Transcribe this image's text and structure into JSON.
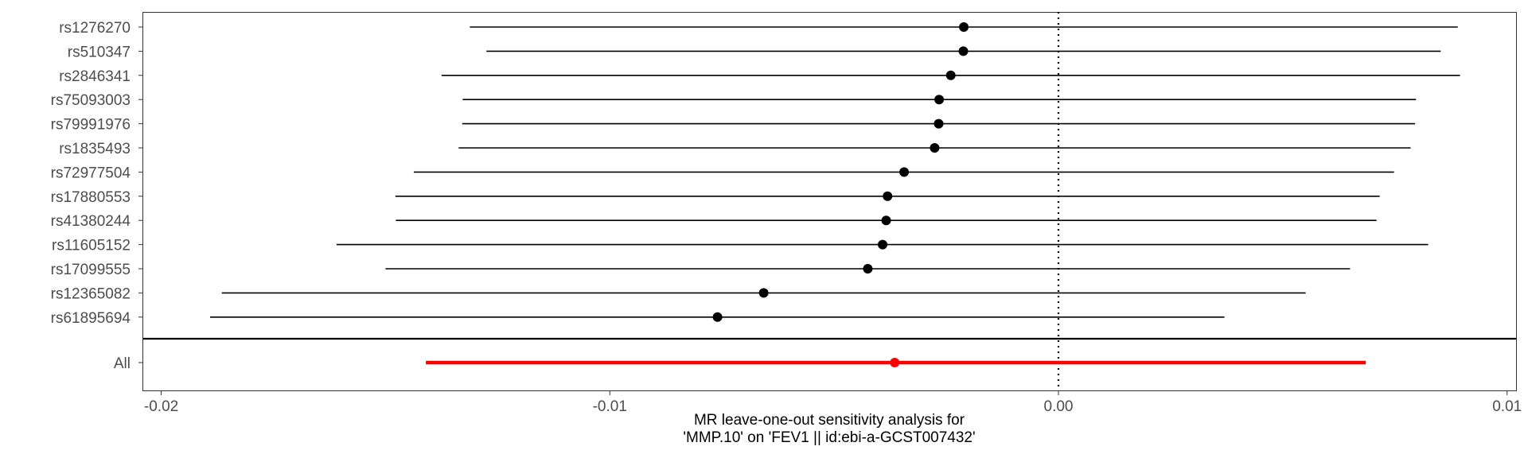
{
  "chart_data": {
    "type": "forest",
    "xlabel_lines": [
      "MR leave-one-out sensitivity analysis for",
      "'MMP.10' on 'FEV1 || id:ebi-a-GCST007432'"
    ],
    "ylabel": "",
    "xlim": [
      -0.0204,
      0.0102
    ],
    "x_ticks": [
      -0.02,
      -0.01,
      0.0,
      0.01
    ],
    "x_tick_labels": [
      "-0.02",
      "-0.01",
      "0.00",
      "0.01"
    ],
    "reference_line": 0,
    "grid": false,
    "colors": {
      "snp": "#000000",
      "overall": "#ff0000",
      "reference": "#000000"
    },
    "snps": [
      {
        "label": "rs1276270",
        "estimate": -0.00211,
        "lower": -0.01312,
        "upper": 0.0089
      },
      {
        "label": "rs510347",
        "estimate": -0.00212,
        "lower": -0.01275,
        "upper": 0.00852
      },
      {
        "label": "rs2846341",
        "estimate": -0.0024,
        "lower": -0.01375,
        "upper": 0.00895
      },
      {
        "label": "rs75093003",
        "estimate": -0.00266,
        "lower": -0.01328,
        "upper": 0.00797
      },
      {
        "label": "rs79991976",
        "estimate": -0.00267,
        "lower": -0.01329,
        "upper": 0.00795
      },
      {
        "label": "rs1835493",
        "estimate": -0.00276,
        "lower": -0.01337,
        "upper": 0.00785
      },
      {
        "label": "rs72977504",
        "estimate": -0.00344,
        "lower": -0.01437,
        "upper": 0.00748
      },
      {
        "label": "rs17880553",
        "estimate": -0.00381,
        "lower": -0.01478,
        "upper": 0.00716
      },
      {
        "label": "rs41380244",
        "estimate": -0.00384,
        "lower": -0.01477,
        "upper": 0.00709
      },
      {
        "label": "rs11605152",
        "estimate": -0.00392,
        "lower": -0.01609,
        "upper": 0.00824
      },
      {
        "label": "rs17099555",
        "estimate": -0.00425,
        "lower": -0.015,
        "upper": 0.0065
      },
      {
        "label": "rs12365082",
        "estimate": -0.00657,
        "lower": -0.01865,
        "upper": 0.00551
      },
      {
        "label": "rs61895694",
        "estimate": -0.0076,
        "lower": -0.01891,
        "upper": 0.0037
      }
    ],
    "overall": {
      "label": "All",
      "estimate": -0.00365,
      "lower": -0.0141,
      "upper": 0.00685
    }
  }
}
